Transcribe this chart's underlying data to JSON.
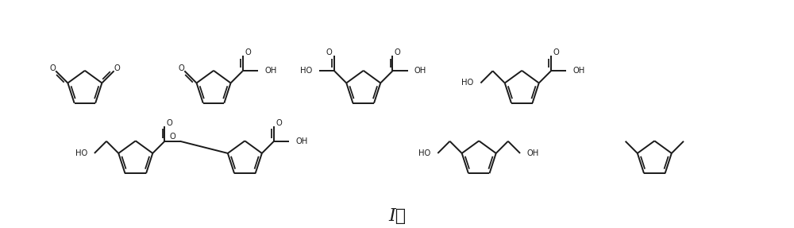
{
  "bg_color": "#ffffff",
  "line_color": "#1a1a1a",
  "line_width": 1.4,
  "text_fontsize": 7.2,
  "title": "I。",
  "title_fontsize": 16,
  "figsize": [
    10.0,
    2.87
  ],
  "xlim": [
    0,
    10.0
  ],
  "ylim": [
    0,
    2.87
  ]
}
